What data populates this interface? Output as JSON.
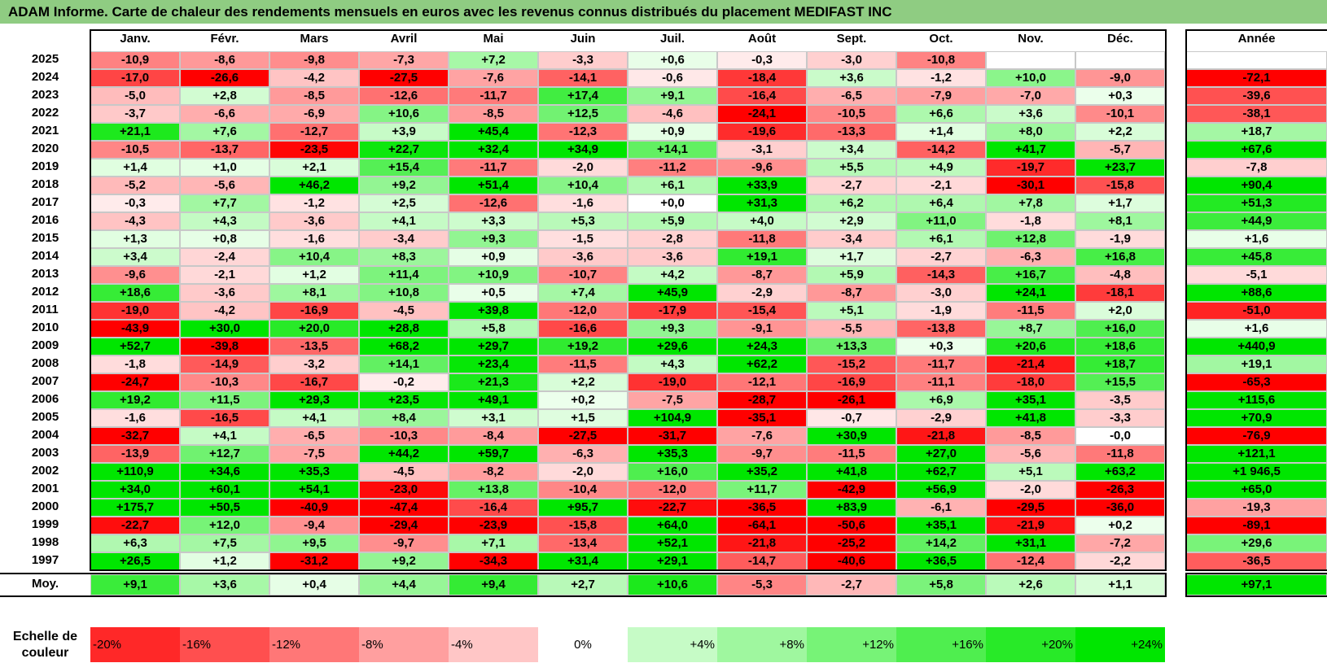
{
  "title": "ADAM Informe. Carte de chaleur des rendements mensuels en euros avec les revenus connus distribués du placement MEDIFAST INC",
  "chart_data": {
    "type": "heatmap",
    "title": "ADAM Informe. Carte de chaleur des rendements mensuels en euros avec les revenus connus distribués du placement MEDIFAST INC",
    "columns": [
      "Janv.",
      "Févr.",
      "Mars",
      "Avril",
      "Mai",
      "Juin",
      "Juil.",
      "Août",
      "Sept.",
      "Oct.",
      "Nov.",
      "Déc."
    ],
    "annual_header": "Année",
    "rows": [
      {
        "year": "2025",
        "values": [
          "-10,9",
          "-8,6",
          "-9,8",
          "-7,3",
          "+7,2",
          "-3,3",
          "+0,6",
          "-0,3",
          "-3,0",
          "-10,8",
          "",
          ""
        ],
        "annual": ""
      },
      {
        "year": "2024",
        "values": [
          "-17,0",
          "-26,6",
          "-4,2",
          "-27,5",
          "-7,6",
          "-14,1",
          "-0,6",
          "-18,4",
          "+3,6",
          "-1,2",
          "+10,0",
          "-9,0"
        ],
        "annual": "-72,1"
      },
      {
        "year": "2023",
        "values": [
          "-5,0",
          "+2,8",
          "-8,5",
          "-12,6",
          "-11,7",
          "+17,4",
          "+9,1",
          "-16,4",
          "-6,5",
          "-7,9",
          "-7,0",
          "+0,3"
        ],
        "annual": "-39,6"
      },
      {
        "year": "2022",
        "values": [
          "-3,7",
          "-6,6",
          "-6,9",
          "+10,6",
          "-8,5",
          "+12,5",
          "-4,6",
          "-24,1",
          "-10,5",
          "+6,6",
          "+3,6",
          "-10,1"
        ],
        "annual": "-38,1"
      },
      {
        "year": "2021",
        "values": [
          "+21,1",
          "+7,6",
          "-12,7",
          "+3,9",
          "+45,4",
          "-12,3",
          "+0,9",
          "-19,6",
          "-13,3",
          "+1,4",
          "+8,0",
          "+2,2"
        ],
        "annual": "+18,7"
      },
      {
        "year": "2020",
        "values": [
          "-10,5",
          "-13,7",
          "-23,5",
          "+22,7",
          "+32,4",
          "+34,9",
          "+14,1",
          "-3,1",
          "+3,4",
          "-14,2",
          "+41,7",
          "-5,7"
        ],
        "annual": "+67,6"
      },
      {
        "year": "2019",
        "values": [
          "+1,4",
          "+1,0",
          "+2,1",
          "+15,4",
          "-11,7",
          "-2,0",
          "-11,2",
          "-9,6",
          "+5,5",
          "+4,9",
          "-19,7",
          "+23,7"
        ],
        "annual": "-7,8"
      },
      {
        "year": "2018",
        "values": [
          "-5,2",
          "-5,6",
          "+46,2",
          "+9,2",
          "+51,4",
          "+10,4",
          "+6,1",
          "+33,9",
          "-2,7",
          "-2,1",
          "-30,1",
          "-15,8"
        ],
        "annual": "+90,4"
      },
      {
        "year": "2017",
        "values": [
          "-0,3",
          "+7,7",
          "-1,2",
          "+2,5",
          "-12,6",
          "-1,6",
          "+0,0",
          "+31,3",
          "+6,2",
          "+6,4",
          "+7,8",
          "+1,7"
        ],
        "annual": "+51,3"
      },
      {
        "year": "2016",
        "values": [
          "-4,3",
          "+4,3",
          "-3,6",
          "+4,1",
          "+3,3",
          "+5,3",
          "+5,9",
          "+4,0",
          "+2,9",
          "+11,0",
          "-1,8",
          "+8,1"
        ],
        "annual": "+44,9"
      },
      {
        "year": "2015",
        "values": [
          "+1,3",
          "+0,8",
          "-1,6",
          "-3,4",
          "+9,3",
          "-1,5",
          "-2,8",
          "-11,8",
          "-3,4",
          "+6,1",
          "+12,8",
          "-1,9"
        ],
        "annual": "+1,6"
      },
      {
        "year": "2014",
        "values": [
          "+3,4",
          "-2,4",
          "+10,4",
          "+8,3",
          "+0,9",
          "-3,6",
          "-3,6",
          "+19,1",
          "+1,7",
          "-2,7",
          "-6,3",
          "+16,8"
        ],
        "annual": "+45,8"
      },
      {
        "year": "2013",
        "values": [
          "-9,6",
          "-2,1",
          "+1,2",
          "+11,4",
          "+10,9",
          "-10,7",
          "+4,2",
          "-8,7",
          "+5,9",
          "-14,3",
          "+16,7",
          "-4,8"
        ],
        "annual": "-5,1"
      },
      {
        "year": "2012",
        "values": [
          "+18,6",
          "-3,6",
          "+8,1",
          "+10,8",
          "+0,5",
          "+7,4",
          "+45,9",
          "-2,9",
          "-8,7",
          "-3,0",
          "+24,1",
          "-18,1"
        ],
        "annual": "+88,6"
      },
      {
        "year": "2011",
        "values": [
          "-19,0",
          "-4,2",
          "-16,9",
          "-4,5",
          "+39,8",
          "-12,0",
          "-17,9",
          "-15,4",
          "+5,1",
          "-1,9",
          "-11,5",
          "+2,0"
        ],
        "annual": "-51,0"
      },
      {
        "year": "2010",
        "values": [
          "-43,9",
          "+30,0",
          "+20,0",
          "+28,8",
          "+5,8",
          "-16,6",
          "+9,3",
          "-9,1",
          "-5,5",
          "-13,8",
          "+8,7",
          "+16,0"
        ],
        "annual": "+1,6"
      },
      {
        "year": "2009",
        "values": [
          "+52,7",
          "-39,8",
          "-13,5",
          "+68,2",
          "+29,7",
          "+19,2",
          "+29,6",
          "+24,3",
          "+13,3",
          "+0,3",
          "+20,6",
          "+18,6"
        ],
        "annual": "+440,9"
      },
      {
        "year": "2008",
        "values": [
          "-1,8",
          "-14,9",
          "-3,2",
          "+14,1",
          "+23,4",
          "-11,5",
          "+4,3",
          "+62,2",
          "-15,2",
          "-11,7",
          "-21,4",
          "+18,7"
        ],
        "annual": "+19,1"
      },
      {
        "year": "2007",
        "values": [
          "-24,7",
          "-10,3",
          "-16,7",
          "-0,2",
          "+21,3",
          "+2,2",
          "-19,0",
          "-12,1",
          "-16,9",
          "-11,1",
          "-18,0",
          "+15,5"
        ],
        "annual": "-65,3"
      },
      {
        "year": "2006",
        "values": [
          "+19,2",
          "+11,5",
          "+29,3",
          "+23,5",
          "+49,1",
          "+0,2",
          "-7,5",
          "-28,7",
          "-26,1",
          "+6,9",
          "+35,1",
          "-3,5"
        ],
        "annual": "+115,6"
      },
      {
        "year": "2005",
        "values": [
          "-1,6",
          "-16,5",
          "+4,1",
          "+8,4",
          "+3,1",
          "+1,5",
          "+104,9",
          "-35,1",
          "-0,7",
          "-2,9",
          "+41,8",
          "-3,3"
        ],
        "annual": "+70,9"
      },
      {
        "year": "2004",
        "values": [
          "-32,7",
          "+4,1",
          "-6,5",
          "-10,3",
          "-8,4",
          "-27,5",
          "-31,7",
          "-7,6",
          "+30,9",
          "-21,8",
          "-8,5",
          "-0,0"
        ],
        "annual": "-76,9"
      },
      {
        "year": "2003",
        "values": [
          "-13,9",
          "+12,7",
          "-7,5",
          "+44,2",
          "+59,7",
          "-6,3",
          "+35,3",
          "-9,7",
          "-11,5",
          "+27,0",
          "-5,6",
          "-11,8"
        ],
        "annual": "+121,1"
      },
      {
        "year": "2002",
        "values": [
          "+110,9",
          "+34,6",
          "+35,3",
          "-4,5",
          "-8,2",
          "-2,0",
          "+16,0",
          "+35,2",
          "+41,8",
          "+62,7",
          "+5,1",
          "+63,2"
        ],
        "annual": "+1 946,5"
      },
      {
        "year": "2001",
        "values": [
          "+34,0",
          "+60,1",
          "+54,1",
          "-23,0",
          "+13,8",
          "-10,4",
          "-12,0",
          "+11,7",
          "-42,9",
          "+56,9",
          "-2,0",
          "-26,3"
        ],
        "annual": "+65,0"
      },
      {
        "year": "2000",
        "values": [
          "+175,7",
          "+50,5",
          "-40,9",
          "-47,4",
          "-16,4",
          "+95,7",
          "-22,7",
          "-36,5",
          "+83,9",
          "-6,1",
          "-29,5",
          "-36,0"
        ],
        "annual": "-19,3"
      },
      {
        "year": "1999",
        "values": [
          "-22,7",
          "+12,0",
          "-9,4",
          "-29,4",
          "-23,9",
          "-15,8",
          "+64,0",
          "-64,1",
          "-50,6",
          "+35,1",
          "-21,9",
          "+0,2"
        ],
        "annual": "-89,1"
      },
      {
        "year": "1998",
        "values": [
          "+6,3",
          "+7,5",
          "+9,5",
          "-9,7",
          "+7,1",
          "-13,4",
          "+52,1",
          "-21,8",
          "-25,2",
          "+14,2",
          "+31,1",
          "-7,2"
        ],
        "annual": "+29,6"
      },
      {
        "year": "1997",
        "values": [
          "+26,5",
          "+1,2",
          "-31,2",
          "+9,2",
          "-34,3",
          "+31,4",
          "+29,1",
          "-14,7",
          "-40,6",
          "+36,5",
          "-12,4",
          "-2,2"
        ],
        "annual": "-36,5"
      }
    ],
    "average": {
      "label": "Moy.",
      "values": [
        "+9,1",
        "+3,6",
        "+0,4",
        "+4,4",
        "+9,4",
        "+2,7",
        "+10,6",
        "-5,3",
        "-2,7",
        "+5,8",
        "+2,6",
        "+1,1"
      ],
      "annual": "+97,1"
    },
    "color_scale": {
      "label": "Echelle de couleur",
      "steps": [
        "-20%",
        "-16%",
        "-12%",
        "-8%",
        "-4%",
        "0%",
        "+4%",
        "+8%",
        "+12%",
        "+16%",
        "+20%",
        "+24%"
      ]
    }
  }
}
